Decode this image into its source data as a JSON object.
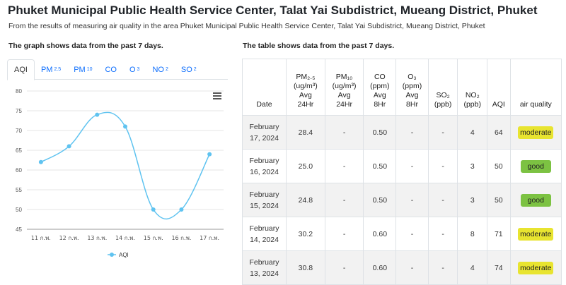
{
  "header": {
    "title": "Phuket Municipal Public Health Service Center, Talat Yai Subdistrict, Mueang District, Phuket",
    "subtitle": "From the results of measuring air quality in the area Phuket Municipal Public Health Service Center, Talat Yai Subdistrict, Mueang District, Phuket"
  },
  "graph_section": {
    "heading": "The graph shows data from the past 7 days."
  },
  "table_section": {
    "heading": "The table shows data from the past 7 days."
  },
  "tabs": [
    {
      "label": "AQI",
      "sub": ""
    },
    {
      "label": "PM",
      "sub": "2.5"
    },
    {
      "label": "PM",
      "sub": "10"
    },
    {
      "label": "CO",
      "sub": ""
    },
    {
      "label": "O",
      "sub": "3"
    },
    {
      "label": "NO",
      "sub": "2"
    },
    {
      "label": "SO",
      "sub": "2"
    }
  ],
  "chart_data": {
    "type": "line",
    "categories": [
      "11 ก.พ.",
      "12 ก.พ.",
      "13 ก.พ.",
      "14 ก.พ.",
      "15 ก.พ.",
      "16 ก.พ.",
      "17 ก.พ."
    ],
    "series": [
      {
        "name": "AQI",
        "values": [
          62,
          66,
          74,
          71,
          50,
          50,
          64
        ],
        "color": "#5fc3f0"
      }
    ],
    "y_ticks": [
      45,
      50,
      55,
      60,
      65,
      70,
      75,
      80
    ],
    "ylim": [
      45,
      80
    ],
    "legend_position": "bottom"
  },
  "table": {
    "headers": [
      {
        "line1": "",
        "line2": "",
        "line3": "",
        "line4": "Date"
      },
      {
        "line1": "PM₂.₅",
        "line2": "(ug/m³)",
        "line3": "Avg",
        "line4": "24Hr"
      },
      {
        "line1": "PM₁₀",
        "line2": "(ug/m³)",
        "line3": "Avg",
        "line4": "24Hr"
      },
      {
        "line1": "CO",
        "line2": "(ppm)",
        "line3": "Avg",
        "line4": "8Hr"
      },
      {
        "line1": "O₃",
        "line2": "(ppm)",
        "line3": "Avg",
        "line4": "8Hr"
      },
      {
        "line1": "",
        "line2": "",
        "line3": "SO₂",
        "line4": "(ppb)"
      },
      {
        "line1": "",
        "line2": "",
        "line3": "NO₂",
        "line4": "(ppb)"
      },
      {
        "line1": "",
        "line2": "",
        "line3": "",
        "line4": "AQI"
      },
      {
        "line1": "",
        "line2": "",
        "line3": "",
        "line4": "air quality"
      }
    ],
    "rows": [
      {
        "date1": "February",
        "date2": "17, 2024",
        "pm25": "28.4",
        "pm10": "-",
        "co": "0.50",
        "o3": "-",
        "so2": "-",
        "no2": "4",
        "aqi": "64",
        "quality": "moderate",
        "level": "moderate"
      },
      {
        "date1": "February",
        "date2": "16, 2024",
        "pm25": "25.0",
        "pm10": "-",
        "co": "0.50",
        "o3": "-",
        "so2": "-",
        "no2": "3",
        "aqi": "50",
        "quality": "good",
        "level": "good"
      },
      {
        "date1": "February",
        "date2": "15, 2024",
        "pm25": "24.8",
        "pm10": "-",
        "co": "0.50",
        "o3": "-",
        "so2": "-",
        "no2": "3",
        "aqi": "50",
        "quality": "good",
        "level": "good"
      },
      {
        "date1": "February",
        "date2": "14, 2024",
        "pm25": "30.2",
        "pm10": "-",
        "co": "0.60",
        "o3": "-",
        "so2": "-",
        "no2": "8",
        "aqi": "71",
        "quality": "moderate",
        "level": "moderate"
      },
      {
        "date1": "February",
        "date2": "13, 2024",
        "pm25": "30.8",
        "pm10": "-",
        "co": "0.60",
        "o3": "-",
        "so2": "-",
        "no2": "4",
        "aqi": "74",
        "quality": "moderate",
        "level": "moderate"
      }
    ]
  },
  "colors": {
    "good": "#7cc242",
    "moderate": "#e8e430",
    "tab_link": "#0d6efd"
  }
}
